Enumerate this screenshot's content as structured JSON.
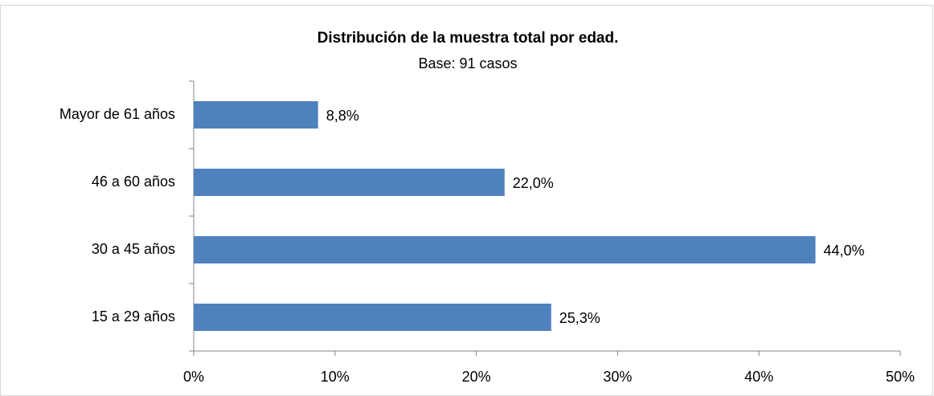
{
  "chart_data": {
    "type": "bar",
    "orientation": "horizontal",
    "title": "Distribución de la muestra total por edad.",
    "subtitle": "Base: 91 casos",
    "categories": [
      "15 a 29 años",
      "30 a 45 años",
      "46 a 60 años",
      "Mayor de 61 años"
    ],
    "values": [
      25.3,
      44.0,
      22.0,
      8.8
    ],
    "value_labels": [
      "25,3%",
      "44,0%",
      "22,0%",
      "8,8%"
    ],
    "color": "#4f81bd",
    "xlim": [
      0,
      50
    ],
    "xticks": [
      {
        "value": 0,
        "label": "0%"
      },
      {
        "value": 10,
        "label": "10%"
      },
      {
        "value": 20,
        "label": "20%"
      },
      {
        "value": 30,
        "label": "30%"
      },
      {
        "value": 40,
        "label": "40%"
      },
      {
        "value": 50,
        "label": "50%"
      }
    ],
    "grid": false
  }
}
